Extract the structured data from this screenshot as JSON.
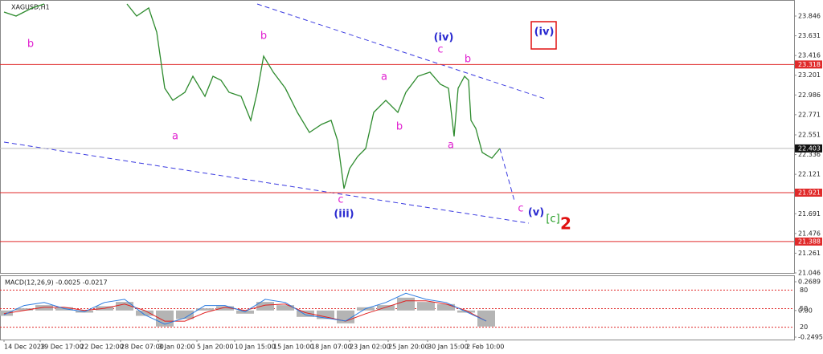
{
  "chart_data": [
    {
      "type": "line",
      "title": "XAGUSD,H1",
      "color": "#2e8b2e",
      "x": [
        5,
        20,
        40,
        55,
        100,
        158,
        170,
        185,
        195,
        205,
        215,
        230,
        240,
        255,
        265,
        275,
        285,
        300,
        312,
        320,
        328,
        340,
        355,
        370,
        385,
        400,
        412,
        420,
        428,
        435,
        445,
        455,
        465,
        480,
        495,
        505,
        520,
        535,
        548,
        558,
        565,
        570,
        578,
        583,
        586,
        592,
        600,
        612,
        622
      ],
      "values": [
        23.89,
        23.846,
        23.934,
        23.977,
        null,
        23.977,
        23.846,
        23.934,
        23.671,
        23.059,
        22.927,
        23.015,
        23.19,
        22.971,
        23.19,
        23.146,
        23.015,
        22.971,
        22.709,
        23.015,
        23.409,
        23.234,
        23.059,
        22.796,
        22.577,
        22.665,
        22.709,
        22.49,
        21.965,
        22.184,
        22.315,
        22.402,
        22.796,
        22.927,
        22.796,
        23.015,
        23.19,
        23.234,
        23.102,
        23.059,
        22.534,
        23.059,
        23.19,
        23.146,
        22.709,
        22.621,
        22.359,
        22.297,
        22.402
      ],
      "xlim": [
        0,
        988
      ],
      "ylim": [
        21.046,
        24.021
      ],
      "yticks": [
        23.846,
        23.631,
        23.416,
        23.201,
        22.986,
        22.771,
        22.551,
        22.336,
        22.121,
        21.691,
        21.476,
        21.261,
        21.046
      ],
      "xticks": [
        {
          "value": 5,
          "label": "14 Dec 2023"
        },
        {
          "value": 50,
          "label": "19 Dec 17:00"
        },
        {
          "value": 100,
          "label": "22 Dec 12:00"
        },
        {
          "value": 150,
          "label": "28 Dec 07:00"
        },
        {
          "value": 197,
          "label": "3 Jan 02:00"
        },
        {
          "value": 245,
          "label": "5 Jan 20:00"
        },
        {
          "value": 292,
          "label": "10 Jan 15:00"
        },
        {
          "value": 340,
          "label": "15 Jan 10:00"
        },
        {
          "value": 387,
          "label": "18 Jan 07:00"
        },
        {
          "value": 435,
          "label": "23 Jan 02:00"
        },
        {
          "value": 483,
          "label": "25 Jan 20:00"
        },
        {
          "value": 532,
          "label": "30 Jan 15:00"
        },
        {
          "value": 580,
          "label": "2 Feb 10:00"
        }
      ],
      "levels": [
        23.318,
        21.921,
        21.388
      ],
      "level_color": "#e02a2a",
      "current": 22.403,
      "annotations": [
        {
          "text": "b",
          "color": "#e020d0"
        },
        {
          "text": "b",
          "color": "#e020d0"
        },
        {
          "text": "a",
          "color": "#e020d0"
        },
        {
          "text": "(iv)",
          "color": "#2a2ad0"
        },
        {
          "text": "c",
          "color": "#e020d0"
        },
        {
          "text": "b",
          "color": "#e020d0"
        },
        {
          "text": "a",
          "color": "#e020d0"
        },
        {
          "text": "b",
          "color": "#e020d0"
        },
        {
          "text": "a",
          "color": "#e020d0"
        },
        {
          "text": "c",
          "color": "#e020d0"
        },
        {
          "text": "(iii)",
          "color": "#2a2ad0"
        },
        {
          "text": "c",
          "color": "#e020d0"
        },
        {
          "text": "(v)",
          "color": "#2a2ad0"
        },
        {
          "text": "[c]",
          "color": "#1e9a1e"
        },
        {
          "text": "2",
          "color": "#e01010"
        },
        {
          "text": "(iv)",
          "color": "#2a2ad0"
        }
      ]
    },
    {
      "type": "macd",
      "title": "MACD(12,26,9) -0.0025 -0.0217",
      "x": [
        5,
        30,
        55,
        80,
        105,
        130,
        155,
        180,
        205,
        230,
        255,
        280,
        305,
        330,
        355,
        380,
        405,
        430,
        455,
        480,
        505,
        530,
        555,
        580,
        605
      ],
      "series": [
        {
          "kind": "histogram",
          "color": "#b4b4b4",
          "values": [
            -0.05,
            0.02,
            0.05,
            0.03,
            -0.02,
            0.04,
            0.08,
            -0.05,
            -0.15,
            -0.08,
            0.02,
            0.04,
            -0.03,
            0.08,
            0.05,
            -0.06,
            -0.08,
            -0.12,
            0.03,
            0.05,
            0.12,
            0.08,
            0.06,
            -0.02,
            -0.15
          ]
        },
        {
          "kind": "line",
          "color": "#e02020",
          "values": [
            -0.03,
            0.0,
            0.03,
            0.03,
            0.0,
            0.02,
            0.06,
            0.0,
            -0.1,
            -0.1,
            -0.02,
            0.03,
            0.0,
            0.05,
            0.06,
            -0.02,
            -0.06,
            -0.1,
            -0.03,
            0.03,
            0.09,
            0.09,
            0.06,
            0.0,
            -0.1
          ]
        },
        {
          "kind": "line",
          "axis": "y2",
          "color": "#2a7ae0",
          "values": [
            40,
            55,
            60,
            50,
            45,
            60,
            65,
            40,
            25,
            35,
            55,
            55,
            45,
            65,
            60,
            40,
            35,
            30,
            50,
            60,
            75,
            65,
            60,
            45,
            30
          ]
        }
      ],
      "xlim": [
        0,
        988
      ],
      "ylim": [
        -0.272,
        0.3065
      ],
      "yticks": [
        0.2689,
        {
          "value": 0,
          "label": "0.00"
        },
        -0.2495
      ],
      "y2lim": [
        0,
        100
      ],
      "y2ticks": [
        80,
        50,
        20
      ],
      "y2grid_color": "#e02a2a"
    }
  ]
}
